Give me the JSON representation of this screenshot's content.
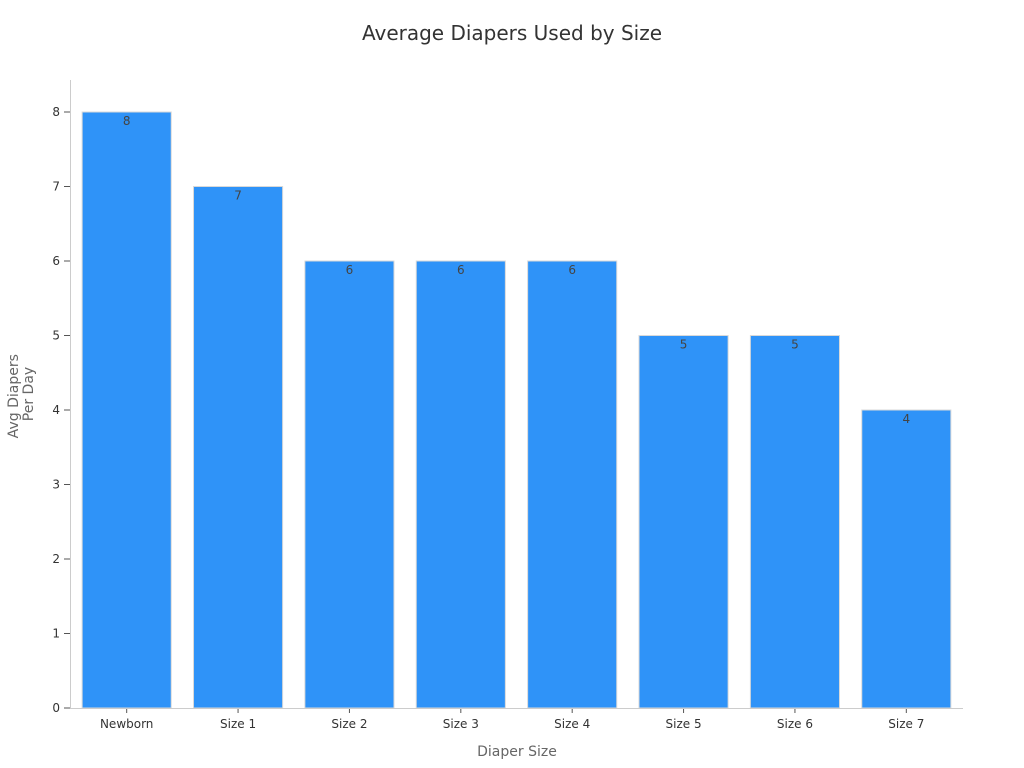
{
  "chart_data": {
    "type": "bar",
    "title": "Average Diapers Used by Size",
    "xlabel": "Diaper Size",
    "ylabel": [
      "Avg Diapers",
      "Per Day"
    ],
    "categories": [
      "Newborn",
      "Size 1",
      "Size 2",
      "Size 3",
      "Size 4",
      "Size 5",
      "Size 6",
      "Size 7"
    ],
    "values": [
      8,
      7,
      6,
      6,
      6,
      5,
      5,
      4
    ],
    "data_labels": [
      "8",
      "7",
      "6",
      "6",
      "6",
      "5",
      "5",
      "4"
    ],
    "yticks": [
      0,
      1,
      2,
      3,
      4,
      5,
      6,
      7,
      8
    ],
    "ylim": [
      0,
      8.4
    ],
    "grid": false,
    "legend": "none",
    "bar_color": "#2f93f8"
  }
}
